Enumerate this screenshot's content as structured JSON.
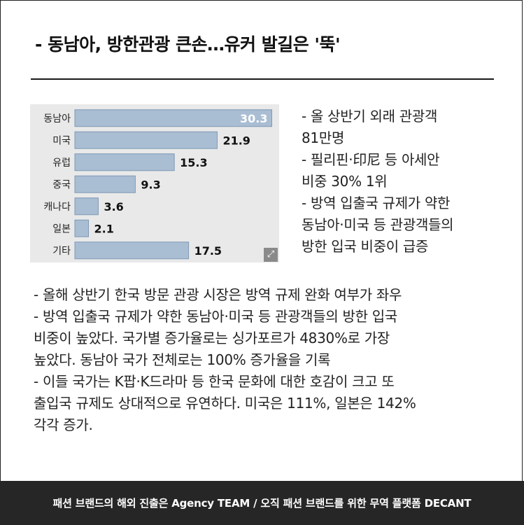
{
  "headline": "- 동남아, 방한관광 큰손…유커 발길은 '뚝'",
  "chart_data": {
    "type": "bar",
    "orientation": "horizontal",
    "categories": [
      "동남아",
      "미국",
      "유럽",
      "중국",
      "캐나다",
      "일본",
      "기타"
    ],
    "values": [
      30.3,
      21.9,
      15.3,
      9.3,
      3.6,
      2.1,
      17.5
    ],
    "value_labels": [
      "30.3",
      "21.9",
      "15.3",
      "9.3",
      "3.6",
      "2.1",
      "17.5"
    ],
    "xlim": [
      0,
      31
    ],
    "bar_color": "#a9bdd3",
    "bar_edge_color": "#7f9ab5"
  },
  "side_notes": [
    "- 올 상반기 외래 관광객",
    "81만명",
    "- 필리핀·印尼 등 아세안",
    "비중 30% 1위",
    "- 방역 입출국 규제가 약한",
    "동남아·미국 등 관광객들의",
    "방한 입국 비중이 급증"
  ],
  "body_lines": [
    "- 올해 상반기 한국 방문 관광 시장은 방역 규제 완화 여부가 좌우",
    "- 방역 입출국 규제가 약한 동남아·미국 등 관광객들의 방한 입국",
    "비중이 높았다. 국가별 증가율로는 싱가포르가 4830%로 가장",
    "높았다. 동남아 국가 전체로는 100% 증가율을 기록",
    "- 이들 국가는 K팝·K드라마 등 한국 문화에 대한 호감이 크고 또",
    "출입국 규제도 상대적으로 유연하다. 미국은 111%, 일본은 142%",
    "각각 증가."
  ],
  "footer": "패션 브랜드의 해외 진출은 Agency TEAM  / 오직 패션 브랜드를 위한 무역 플랫폼 DECANT",
  "icons": {
    "expand": "expand-icon"
  },
  "colors": {
    "footer_bg": "#262626",
    "chart_bg": "#e9e9e9"
  }
}
